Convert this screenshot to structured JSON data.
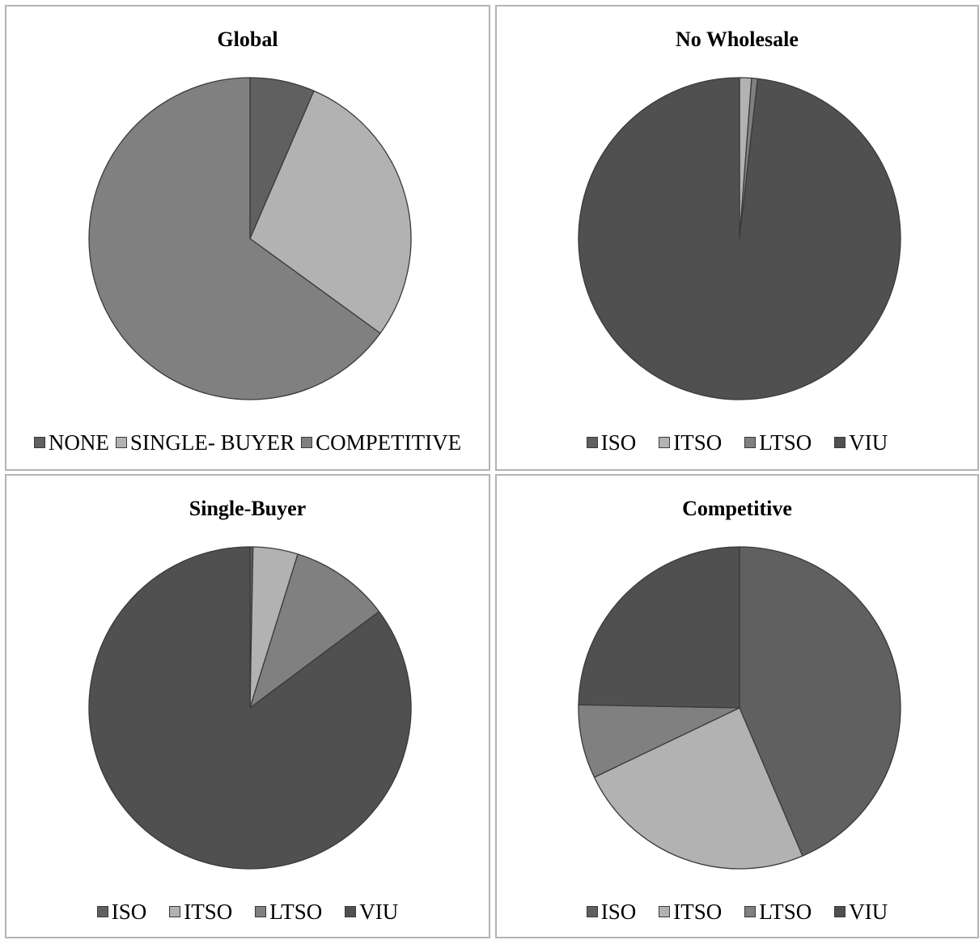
{
  "chart_data": [
    {
      "type": "pie",
      "title": "Global",
      "categories": [
        "NONE",
        "SINGLE- BUYER",
        "COMPETITIVE"
      ],
      "values": [
        6.5,
        28.5,
        65.0
      ],
      "colors": [
        "#606060",
        "#b2b2b2",
        "#808080"
      ],
      "legend": "bottom"
    },
    {
      "type": "pie",
      "title": "No Wholesale",
      "categories": [
        "ISO",
        "ITSO",
        "LTSO",
        "VIU"
      ],
      "values": [
        0,
        1.2,
        0.6,
        98.2
      ],
      "colors": [
        "#606060",
        "#b2b2b2",
        "#808080",
        "#505050"
      ],
      "legend": "bottom"
    },
    {
      "type": "pie",
      "title": "Single-Buyer",
      "categories": [
        "ISO",
        "ITSO",
        "LTSO",
        "VIU"
      ],
      "values": [
        0.3,
        4.5,
        10.0,
        85.2
      ],
      "colors": [
        "#606060",
        "#b2b2b2",
        "#808080",
        "#505050"
      ],
      "legend": "bottom"
    },
    {
      "type": "pie",
      "title": "Competitive",
      "categories": [
        "ISO",
        "ITSO",
        "LTSO",
        "VIU"
      ],
      "values": [
        43.6,
        24.3,
        7.4,
        24.7
      ],
      "colors": [
        "#606060",
        "#b2b2b2",
        "#808080",
        "#505050"
      ],
      "legend": "bottom"
    }
  ]
}
